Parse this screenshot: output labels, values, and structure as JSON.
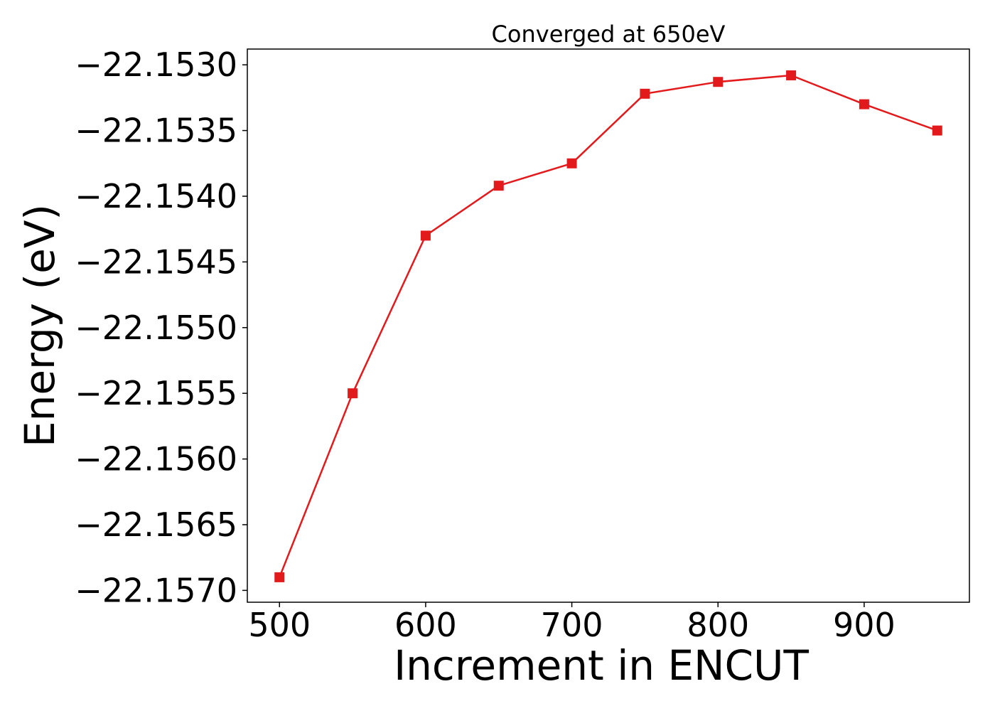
{
  "chart_data": {
    "type": "line",
    "title": "Converged at 650eV",
    "xlabel": "Increment in ENCUT",
    "ylabel": "Energy (eV)",
    "x": [
      500,
      550,
      600,
      650,
      700,
      750,
      800,
      850,
      900,
      950
    ],
    "series": [
      {
        "values": [
          -22.1569,
          -22.1555,
          -22.1543,
          -22.15392,
          -22.15375,
          -22.15322,
          -22.15313,
          -22.15308,
          -22.1533,
          -22.1535
        ],
        "color": "#e31a1c",
        "marker": "square"
      }
    ],
    "xlim": [
      478,
      972
    ],
    "ylim": [
      -22.15709,
      -22.15288
    ],
    "xticks": [
      500,
      600,
      700,
      800,
      900
    ],
    "xtick_labels": [
      "500",
      "600",
      "700",
      "800",
      "900"
    ],
    "yticks": [
      -22.157,
      -22.1565,
      -22.156,
      -22.1555,
      -22.155,
      -22.1545,
      -22.154,
      -22.1535,
      -22.153
    ],
    "ytick_labels": [
      "−22.1570",
      "−22.1565",
      "−22.1560",
      "−22.1555",
      "−22.1550",
      "−22.1545",
      "−22.1540",
      "−22.1535",
      "−22.1530"
    ],
    "grid": false,
    "legend": "none"
  }
}
